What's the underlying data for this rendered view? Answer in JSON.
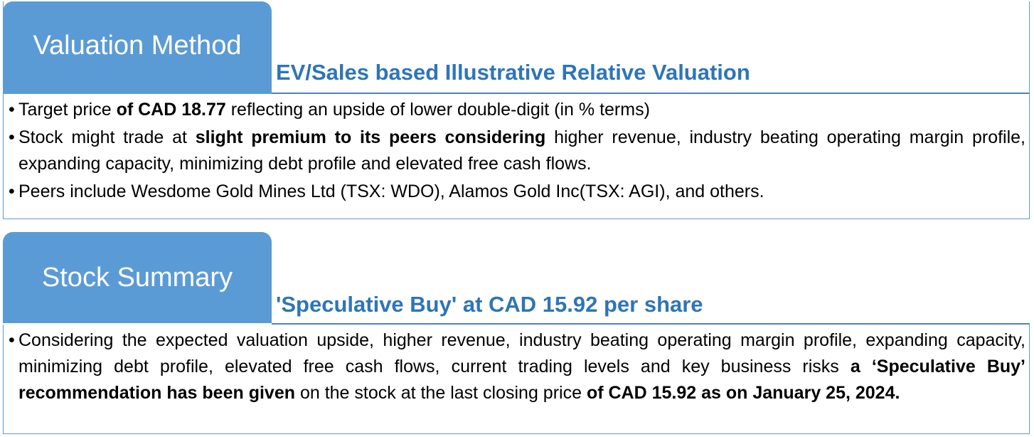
{
  "valuation": {
    "tab_title": "Valuation Method",
    "subtitle": "EV/Sales based Illustrative Relative Valuation",
    "bullets": [
      {
        "parts": [
          {
            "text": "Target price ",
            "bold": false
          },
          {
            "text": "of CAD 18.77",
            "bold": true
          },
          {
            "text": " reflecting an upside of lower double-digit (in % terms)",
            "bold": false
          }
        ]
      },
      {
        "parts": [
          {
            "text": "Stock might trade at ",
            "bold": false
          },
          {
            "text": "slight premium to its peers considering",
            "bold": true
          },
          {
            "text": " higher revenue, industry beating operating margin profile, expanding capacity, minimizing debt profile and elevated free cash flows.",
            "bold": false
          }
        ]
      },
      {
        "parts": [
          {
            "text": "Peers include Wesdome Gold Mines Ltd (TSX: WDO), Alamos Gold Inc(TSX: AGI), and others.",
            "bold": false
          }
        ]
      }
    ]
  },
  "summary": {
    "tab_title": "Stock Summary",
    "subtitle": "'Speculative Buy' at CAD 15.92 per share",
    "bullets": [
      {
        "parts": [
          {
            "text": "Considering the expected valuation upside, higher revenue, industry beating operating margin profile, expanding capacity, minimizing debt profile, elevated free cash flows, current trading levels and key business risks ",
            "bold": false
          },
          {
            "text": "a ‘Speculative Buy’ recommendation has been given",
            "bold": true
          },
          {
            "text": " on the stock at the last closing price ",
            "bold": false
          },
          {
            "text": "of CAD 15.92 as on January 25, 2024.",
            "bold": true
          }
        ]
      }
    ]
  },
  "colors": {
    "tab_bg": "#5b9bd5",
    "subtitle": "#2e75b6",
    "rule": "#4f81bd"
  }
}
